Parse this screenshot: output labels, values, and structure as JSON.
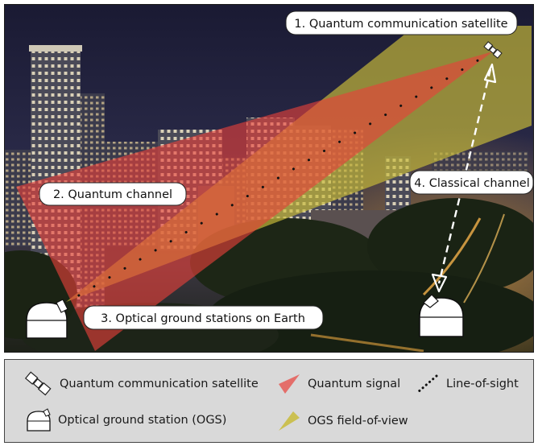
{
  "labels": {
    "satellite": "1. Quantum communication satellite",
    "quantum_channel": "2. Quantum channel",
    "ground_stations": "3. Optical ground stations on Earth",
    "classical_channel": "4. Classical channel"
  },
  "legend": {
    "satellite": "Quantum communication satellite",
    "quantum_signal": "Quantum signal",
    "line_of_sight": "Line-of-sight",
    "ogs": "Optical ground station (OGS)",
    "ogs_fov": "OGS field-of-view"
  },
  "icons": {
    "satellite": "satellite-icon",
    "ground_station": "ground-station-icon",
    "quantum_signal": "red-cone-icon",
    "line_of_sight": "dotted-line-icon",
    "fov": "yellow-cone-icon"
  },
  "colors": {
    "quantum_signal": "#e8403a",
    "fov": "#c8bb3a",
    "legend_bg": "#d9d9d9"
  }
}
